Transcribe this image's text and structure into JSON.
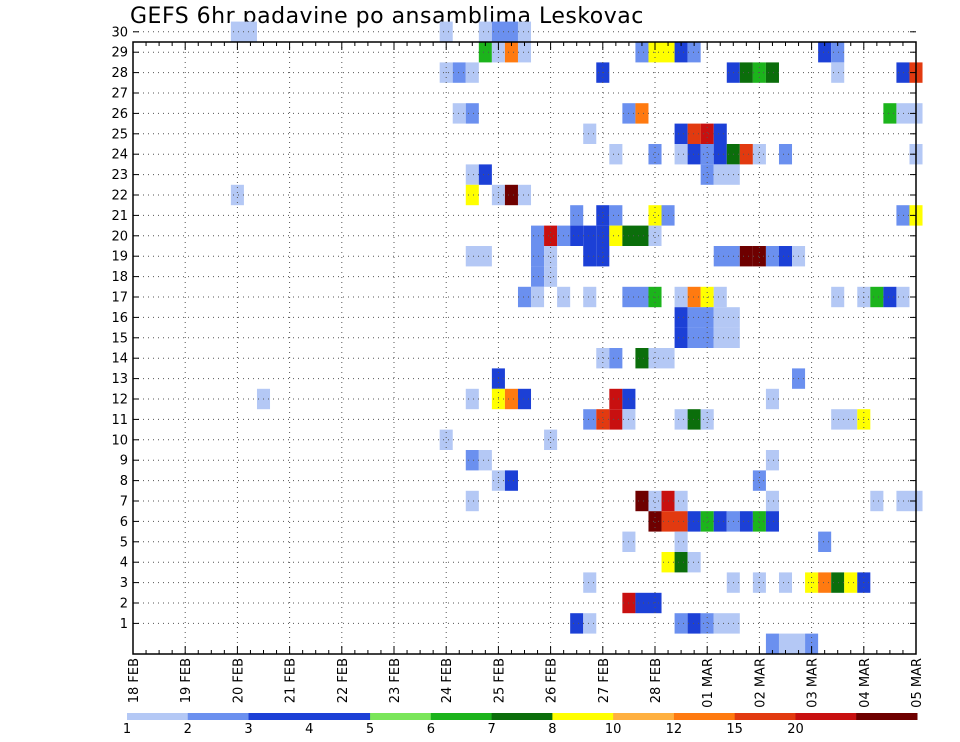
{
  "chart_data": {
    "type": "heatmap",
    "title": "GEFS 6hr padavine po ansamblima Leskovac",
    "x_tick_labels": [
      "18 FEB",
      "19 FEB",
      "20 FEB",
      "21 FEB",
      "22 FEB",
      "23 FEB",
      "24 FEB",
      "25 FEB",
      "26 FEB",
      "27 FEB",
      "28 FEB",
      "01 MAR",
      "02 MAR",
      "03 MAR",
      "04 MAR",
      "05 MAR"
    ],
    "x_step_hours": 6,
    "x_steps_total": 60,
    "y_tick_labels": [
      "1",
      "2",
      "3",
      "4",
      "5",
      "6",
      "7",
      "8",
      "9",
      "10",
      "11",
      "12",
      "13",
      "14",
      "15",
      "16",
      "17",
      "18",
      "19",
      "20",
      "21",
      "22",
      "23",
      "24",
      "25",
      "26",
      "27",
      "28",
      "29",
      "30"
    ],
    "ylim": [
      0,
      30
    ],
    "grid": true,
    "colorbar": {
      "labels": [
        "1",
        "2",
        "3",
        "4",
        "5",
        "6",
        "7",
        "8",
        "10",
        "12",
        "15",
        "20"
      ],
      "colors": [
        "#b4c8f5",
        "#6b90ef",
        "#1c40d6",
        "#1c40d6",
        "#7ae65a",
        "#1cb41c",
        "#0b6e0b",
        "#ffff00",
        "#ffb040",
        "#ff7a10",
        "#e23a10",
        "#c81010",
        "#6e0000"
      ]
    },
    "value_bins": [
      1,
      2,
      3,
      4,
      5,
      6,
      7,
      8,
      10,
      12,
      15,
      20
    ],
    "cells": [
      {
        "m": 30,
        "t": [
          8,
          9
        ],
        "v": 1
      },
      {
        "m": 30,
        "t": [
          24
        ],
        "v": 1
      },
      {
        "m": 30,
        "t": [
          27
        ],
        "v": 1
      },
      {
        "m": 30,
        "t": [
          28,
          29
        ],
        "v": 2
      },
      {
        "m": 30,
        "t": [
          30
        ],
        "v": 1
      },
      {
        "m": 29,
        "t": [
          27
        ],
        "v": 5
      },
      {
        "m": 29,
        "t": [
          28
        ],
        "v": 1
      },
      {
        "m": 29,
        "t": [
          29
        ],
        "v": 8
      },
      {
        "m": 29,
        "t": [
          30
        ],
        "v": 1
      },
      {
        "m": 29,
        "t": [
          39
        ],
        "v": 2
      },
      {
        "m": 29,
        "t": [
          40,
          41
        ],
        "v": 7
      },
      {
        "m": 29,
        "t": [
          42
        ],
        "v": 3
      },
      {
        "m": 29,
        "t": [
          43
        ],
        "v": 2
      },
      {
        "m": 29,
        "t": [
          53
        ],
        "v": 3
      },
      {
        "m": 29,
        "t": [
          54
        ],
        "v": 2
      },
      {
        "m": 28,
        "t": [
          24
        ],
        "v": 1
      },
      {
        "m": 28,
        "t": [
          25
        ],
        "v": 2
      },
      {
        "m": 28,
        "t": [
          26
        ],
        "v": 1
      },
      {
        "m": 28,
        "t": [
          36
        ],
        "v": 3
      },
      {
        "m": 28,
        "t": [
          46
        ],
        "v": 3
      },
      {
        "m": 28,
        "t": [
          47
        ],
        "v": 6
      },
      {
        "m": 28,
        "t": [
          48
        ],
        "v": 5
      },
      {
        "m": 28,
        "t": [
          49
        ],
        "v": 6
      },
      {
        "m": 28,
        "t": [
          54
        ],
        "v": 1
      },
      {
        "m": 28,
        "t": [
          59
        ],
        "v": 3
      },
      {
        "m": 28,
        "t": [
          60
        ],
        "v": 10
      },
      {
        "m": 26,
        "t": [
          25
        ],
        "v": 1
      },
      {
        "m": 26,
        "t": [
          26
        ],
        "v": 2
      },
      {
        "m": 26,
        "t": [
          38
        ],
        "v": 2
      },
      {
        "m": 26,
        "t": [
          39
        ],
        "v": 8
      },
      {
        "m": 26,
        "t": [
          58
        ],
        "v": 5
      },
      {
        "m": 26,
        "t": [
          59,
          60
        ],
        "v": 1
      },
      {
        "m": 25,
        "t": [
          35
        ],
        "v": 1
      },
      {
        "m": 25,
        "t": [
          42
        ],
        "v": 3
      },
      {
        "m": 25,
        "t": [
          43
        ],
        "v": 10
      },
      {
        "m": 25,
        "t": [
          44
        ],
        "v": 12
      },
      {
        "m": 25,
        "t": [
          45
        ],
        "v": 3
      },
      {
        "m": 24,
        "t": [
          37
        ],
        "v": 1
      },
      {
        "m": 24,
        "t": [
          40
        ],
        "v": 2
      },
      {
        "m": 24,
        "t": [
          42
        ],
        "v": 1
      },
      {
        "m": 24,
        "t": [
          43
        ],
        "v": 3
      },
      {
        "m": 24,
        "t": [
          44
        ],
        "v": 2
      },
      {
        "m": 24,
        "t": [
          45
        ],
        "v": 3
      },
      {
        "m": 24,
        "t": [
          46
        ],
        "v": 6
      },
      {
        "m": 24,
        "t": [
          47
        ],
        "v": 10
      },
      {
        "m": 24,
        "t": [
          48
        ],
        "v": 1
      },
      {
        "m": 24,
        "t": [
          50
        ],
        "v": 2
      },
      {
        "m": 24,
        "t": [
          60
        ],
        "v": 1
      },
      {
        "m": 23,
        "t": [
          26
        ],
        "v": 1
      },
      {
        "m": 23,
        "t": [
          27
        ],
        "v": 3
      },
      {
        "m": 23,
        "t": [
          44
        ],
        "v": 2
      },
      {
        "m": 23,
        "t": [
          45,
          46
        ],
        "v": 1
      },
      {
        "m": 22,
        "t": [
          8
        ],
        "v": 1
      },
      {
        "m": 22,
        "t": [
          26
        ],
        "v": 7
      },
      {
        "m": 22,
        "t": [
          28
        ],
        "v": 1
      },
      {
        "m": 22,
        "t": [
          29
        ],
        "v": 15
      },
      {
        "m": 22,
        "t": [
          30
        ],
        "v": 1
      },
      {
        "m": 21,
        "t": [
          34
        ],
        "v": 2
      },
      {
        "m": 21,
        "t": [
          36
        ],
        "v": 3
      },
      {
        "m": 21,
        "t": [
          37
        ],
        "v": 2
      },
      {
        "m": 21,
        "t": [
          40
        ],
        "v": 7
      },
      {
        "m": 21,
        "t": [
          41
        ],
        "v": 2
      },
      {
        "m": 21,
        "t": [
          59
        ],
        "v": 2
      },
      {
        "m": 21,
        "t": [
          60
        ],
        "v": 7
      },
      {
        "m": 20,
        "t": [
          31
        ],
        "v": 2
      },
      {
        "m": 20,
        "t": [
          32
        ],
        "v": 12
      },
      {
        "m": 20,
        "t": [
          33
        ],
        "v": 2
      },
      {
        "m": 20,
        "t": [
          34
        ],
        "v": 3
      },
      {
        "m": 20,
        "t": [
          35
        ],
        "v": 3
      },
      {
        "m": 20,
        "t": [
          36
        ],
        "v": 3
      },
      {
        "m": 20,
        "t": [
          37
        ],
        "v": 7
      },
      {
        "m": 20,
        "t": [
          38,
          39
        ],
        "v": 6
      },
      {
        "m": 20,
        "t": [
          40
        ],
        "v": 1
      },
      {
        "m": 19,
        "t": [
          26,
          27
        ],
        "v": 1
      },
      {
        "m": 19,
        "t": [
          31
        ],
        "v": 2
      },
      {
        "m": 19,
        "t": [
          32
        ],
        "v": 1
      },
      {
        "m": 19,
        "t": [
          35
        ],
        "v": 3
      },
      {
        "m": 19,
        "t": [
          36
        ],
        "v": 3
      },
      {
        "m": 19,
        "t": [
          45,
          46
        ],
        "v": 2
      },
      {
        "m": 19,
        "t": [
          47
        ],
        "v": 20
      },
      {
        "m": 19,
        "t": [
          48
        ],
        "v": 15
      },
      {
        "m": 19,
        "t": [
          49
        ],
        "v": 2
      },
      {
        "m": 19,
        "t": [
          50
        ],
        "v": 3
      },
      {
        "m": 19,
        "t": [
          51
        ],
        "v": 1
      },
      {
        "m": 18,
        "t": [
          31
        ],
        "v": 2
      },
      {
        "m": 18,
        "t": [
          32
        ],
        "v": 1
      },
      {
        "m": 17,
        "t": [
          30
        ],
        "v": 2
      },
      {
        "m": 17,
        "t": [
          31
        ],
        "v": 1
      },
      {
        "m": 17,
        "t": [
          33
        ],
        "v": 1
      },
      {
        "m": 17,
        "t": [
          35
        ],
        "v": 1
      },
      {
        "m": 17,
        "t": [
          38,
          39
        ],
        "v": 2
      },
      {
        "m": 17,
        "t": [
          40
        ],
        "v": 5
      },
      {
        "m": 17,
        "t": [
          42
        ],
        "v": 1
      },
      {
        "m": 17,
        "t": [
          43
        ],
        "v": 8
      },
      {
        "m": 17,
        "t": [
          44
        ],
        "v": 7
      },
      {
        "m": 17,
        "t": [
          45
        ],
        "v": 1
      },
      {
        "m": 17,
        "t": [
          54
        ],
        "v": 1
      },
      {
        "m": 17,
        "t": [
          56
        ],
        "v": 1
      },
      {
        "m": 17,
        "t": [
          57
        ],
        "v": 5
      },
      {
        "m": 17,
        "t": [
          58
        ],
        "v": 3
      },
      {
        "m": 17,
        "t": [
          59
        ],
        "v": 1
      },
      {
        "m": 16,
        "t": [
          42
        ],
        "v": 3
      },
      {
        "m": 16,
        "t": [
          43,
          44
        ],
        "v": 2
      },
      {
        "m": 16,
        "t": [
          45,
          46
        ],
        "v": 1
      },
      {
        "m": 15,
        "t": [
          42
        ],
        "v": 3
      },
      {
        "m": 15,
        "t": [
          43,
          44
        ],
        "v": 2
      },
      {
        "m": 15,
        "t": [
          45,
          46
        ],
        "v": 1
      },
      {
        "m": 14,
        "t": [
          36
        ],
        "v": 1
      },
      {
        "m": 14,
        "t": [
          37
        ],
        "v": 2
      },
      {
        "m": 14,
        "t": [
          39
        ],
        "v": 6
      },
      {
        "m": 14,
        "t": [
          40,
          41
        ],
        "v": 1
      },
      {
        "m": 13,
        "t": [
          28
        ],
        "v": 3
      },
      {
        "m": 13,
        "t": [
          51
        ],
        "v": 2
      },
      {
        "m": 12,
        "t": [
          10
        ],
        "v": 1
      },
      {
        "m": 12,
        "t": [
          26
        ],
        "v": 1
      },
      {
        "m": 12,
        "t": [
          28
        ],
        "v": 7
      },
      {
        "m": 12,
        "t": [
          29
        ],
        "v": 8
      },
      {
        "m": 12,
        "t": [
          30
        ],
        "v": 3
      },
      {
        "m": 12,
        "t": [
          37
        ],
        "v": 12
      },
      {
        "m": 12,
        "t": [
          38
        ],
        "v": 3
      },
      {
        "m": 12,
        "t": [
          49
        ],
        "v": 1
      },
      {
        "m": 11,
        "t": [
          35
        ],
        "v": 2
      },
      {
        "m": 11,
        "t": [
          36
        ],
        "v": 10
      },
      {
        "m": 11,
        "t": [
          37
        ],
        "v": 12
      },
      {
        "m": 11,
        "t": [
          38
        ],
        "v": 1
      },
      {
        "m": 11,
        "t": [
          42
        ],
        "v": 1
      },
      {
        "m": 11,
        "t": [
          43
        ],
        "v": 6
      },
      {
        "m": 11,
        "t": [
          44
        ],
        "v": 1
      },
      {
        "m": 11,
        "t": [
          54,
          55
        ],
        "v": 1
      },
      {
        "m": 11,
        "t": [
          56
        ],
        "v": 7
      },
      {
        "m": 10,
        "t": [
          24
        ],
        "v": 1
      },
      {
        "m": 10,
        "t": [
          32
        ],
        "v": 1
      },
      {
        "m": 9,
        "t": [
          26
        ],
        "v": 2
      },
      {
        "m": 9,
        "t": [
          27
        ],
        "v": 1
      },
      {
        "m": 9,
        "t": [
          49
        ],
        "v": 1
      },
      {
        "m": 8,
        "t": [
          28
        ],
        "v": 1
      },
      {
        "m": 8,
        "t": [
          29
        ],
        "v": 3
      },
      {
        "m": 8,
        "t": [
          48
        ],
        "v": 2
      },
      {
        "m": 7,
        "t": [
          26
        ],
        "v": 1
      },
      {
        "m": 7,
        "t": [
          39
        ],
        "v": 20
      },
      {
        "m": 7,
        "t": [
          40
        ],
        "v": 1
      },
      {
        "m": 7,
        "t": [
          41
        ],
        "v": 12
      },
      {
        "m": 7,
        "t": [
          42
        ],
        "v": 1
      },
      {
        "m": 7,
        "t": [
          49
        ],
        "v": 1
      },
      {
        "m": 7,
        "t": [
          57
        ],
        "v": 1
      },
      {
        "m": 7,
        "t": [
          59,
          60
        ],
        "v": 1
      },
      {
        "m": 6,
        "t": [
          40
        ],
        "v": 15
      },
      {
        "m": 6,
        "t": [
          41,
          42
        ],
        "v": 10
      },
      {
        "m": 6,
        "t": [
          43
        ],
        "v": 3
      },
      {
        "m": 6,
        "t": [
          44
        ],
        "v": 5
      },
      {
        "m": 6,
        "t": [
          45
        ],
        "v": 3
      },
      {
        "m": 6,
        "t": [
          46
        ],
        "v": 2
      },
      {
        "m": 6,
        "t": [
          47
        ],
        "v": 3
      },
      {
        "m": 6,
        "t": [
          48
        ],
        "v": 5
      },
      {
        "m": 6,
        "t": [
          49
        ],
        "v": 3
      },
      {
        "m": 5,
        "t": [
          38
        ],
        "v": 1
      },
      {
        "m": 5,
        "t": [
          42
        ],
        "v": 1
      },
      {
        "m": 5,
        "t": [
          53
        ],
        "v": 2
      },
      {
        "m": 4,
        "t": [
          41
        ],
        "v": 7
      },
      {
        "m": 4,
        "t": [
          42
        ],
        "v": 6
      },
      {
        "m": 4,
        "t": [
          43
        ],
        "v": 1
      },
      {
        "m": 3,
        "t": [
          35
        ],
        "v": 1
      },
      {
        "m": 3,
        "t": [
          46
        ],
        "v": 1
      },
      {
        "m": 3,
        "t": [
          48
        ],
        "v": 1
      },
      {
        "m": 3,
        "t": [
          50
        ],
        "v": 1
      },
      {
        "m": 3,
        "t": [
          52
        ],
        "v": 7
      },
      {
        "m": 3,
        "t": [
          53
        ],
        "v": 8
      },
      {
        "m": 3,
        "t": [
          54
        ],
        "v": 6
      },
      {
        "m": 3,
        "t": [
          55
        ],
        "v": 7
      },
      {
        "m": 3,
        "t": [
          56
        ],
        "v": 3
      },
      {
        "m": 2,
        "t": [
          38
        ],
        "v": 12
      },
      {
        "m": 2,
        "t": [
          39,
          40
        ],
        "v": 3
      },
      {
        "m": 1,
        "t": [
          34
        ],
        "v": 3
      },
      {
        "m": 1,
        "t": [
          35
        ],
        "v": 1
      },
      {
        "m": 1,
        "t": [
          42
        ],
        "v": 2
      },
      {
        "m": 1,
        "t": [
          43
        ],
        "v": 3
      },
      {
        "m": 1,
        "t": [
          44
        ],
        "v": 2
      },
      {
        "m": 1,
        "t": [
          45,
          46
        ],
        "v": 1
      },
      {
        "m": 0,
        "t": [
          49
        ],
        "v": 2
      },
      {
        "m": 0,
        "t": [
          50,
          51
        ],
        "v": 1
      },
      {
        "m": 0,
        "t": [
          52
        ],
        "v": 2
      }
    ]
  }
}
